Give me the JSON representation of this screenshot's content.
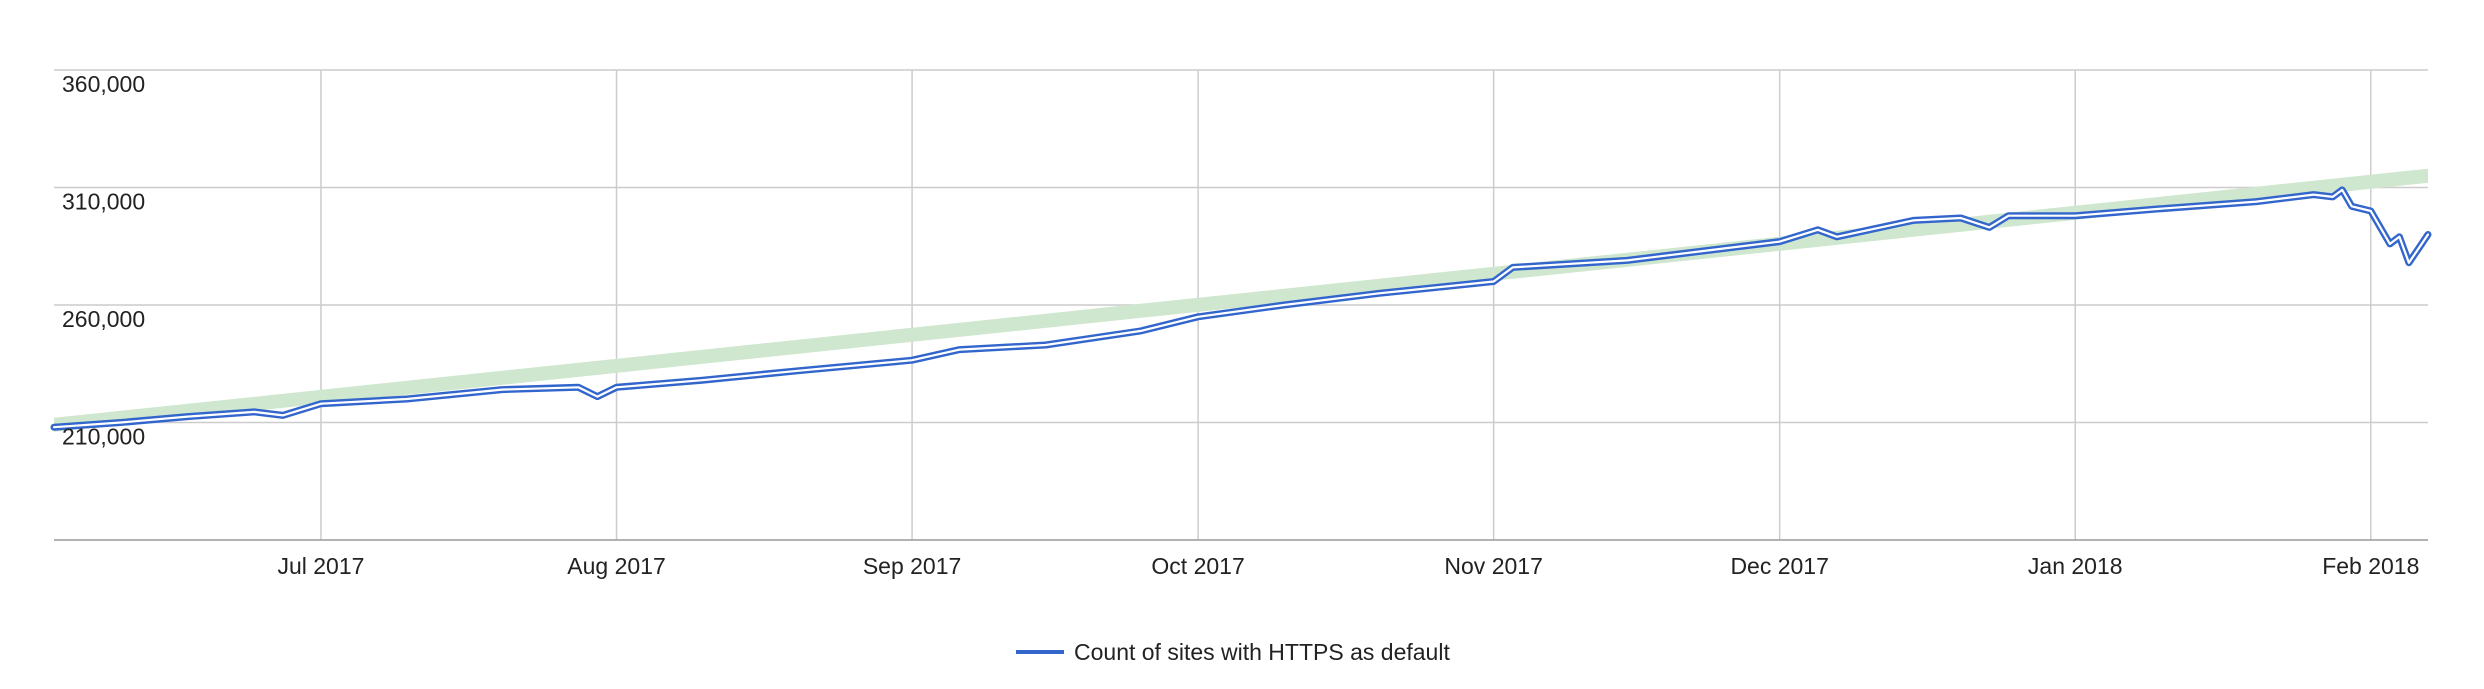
{
  "chart_data": {
    "type": "line",
    "title": "",
    "xlabel": "",
    "ylabel": "",
    "ylim": [
      160000,
      360000
    ],
    "y_ticks": [
      360000,
      310000,
      260000,
      210000
    ],
    "y_tick_labels": [
      "360,000",
      "310,000",
      "260,000",
      "210,000"
    ],
    "xlim": [
      "2017-06-03",
      "2018-02-07"
    ],
    "x_ticks": [
      "2017-07-01",
      "2017-08-01",
      "2017-09-01",
      "2017-10-01",
      "2017-11-01",
      "2017-12-01",
      "2018-01-01",
      "2018-02-01"
    ],
    "x_tick_labels": [
      "Jul 2017",
      "Aug 2017",
      "Sep 2017",
      "Oct 2017",
      "Nov 2017",
      "Dec 2017",
      "Jan 2018",
      "Feb 2018"
    ],
    "grid": true,
    "legend": {
      "position": "bottom",
      "entries": [
        "Count of sites with HTTPS as default"
      ]
    },
    "colors": {
      "series": "#3366cc",
      "band": "#cfe7cf",
      "grid": "#cccccc"
    },
    "series": [
      {
        "name": "Count of sites with HTTPS as default",
        "points": [
          [
            "2017-06-03",
            208000
          ],
          [
            "2017-06-10",
            210000
          ],
          [
            "2017-06-17",
            212500
          ],
          [
            "2017-06-24",
            214500
          ],
          [
            "2017-06-27",
            213000
          ],
          [
            "2017-07-01",
            218000
          ],
          [
            "2017-07-10",
            220000
          ],
          [
            "2017-07-20",
            224000
          ],
          [
            "2017-07-28",
            225000
          ],
          [
            "2017-07-30",
            221000
          ],
          [
            "2017-08-01",
            225000
          ],
          [
            "2017-08-10",
            228000
          ],
          [
            "2017-08-20",
            232000
          ],
          [
            "2017-09-01",
            236500
          ],
          [
            "2017-09-06",
            241000
          ],
          [
            "2017-09-15",
            243000
          ],
          [
            "2017-09-25",
            249000
          ],
          [
            "2017-10-01",
            255000
          ],
          [
            "2017-10-10",
            260000
          ],
          [
            "2017-10-20",
            265000
          ],
          [
            "2017-11-01",
            270000
          ],
          [
            "2017-11-03",
            276000
          ],
          [
            "2017-11-15",
            279000
          ],
          [
            "2017-11-25",
            284000
          ],
          [
            "2017-12-01",
            287000
          ],
          [
            "2017-12-05",
            292000
          ],
          [
            "2017-12-07",
            289000
          ],
          [
            "2017-12-15",
            296000
          ],
          [
            "2017-12-20",
            297000
          ],
          [
            "2017-12-23",
            293000
          ],
          [
            "2017-12-25",
            298000
          ],
          [
            "2018-01-01",
            298000
          ],
          [
            "2018-01-10",
            301000
          ],
          [
            "2018-01-20",
            304000
          ],
          [
            "2018-01-26",
            307000
          ],
          [
            "2018-01-28",
            306000
          ],
          [
            "2018-01-29",
            309000
          ],
          [
            "2018-01-30",
            302000
          ],
          [
            "2018-02-01",
            300000
          ],
          [
            "2018-02-03",
            286000
          ],
          [
            "2018-02-04",
            289000
          ],
          [
            "2018-02-05",
            278000
          ],
          [
            "2018-02-06",
            284000
          ],
          [
            "2018-02-07",
            290000
          ]
        ]
      }
    ],
    "band": {
      "lower": [
        [
          "2017-06-03",
          206000
        ],
        [
          "2018-02-07",
          312000
        ]
      ],
      "upper": [
        [
          "2017-06-03",
          212000
        ],
        [
          "2018-02-07",
          318000
        ]
      ]
    }
  }
}
